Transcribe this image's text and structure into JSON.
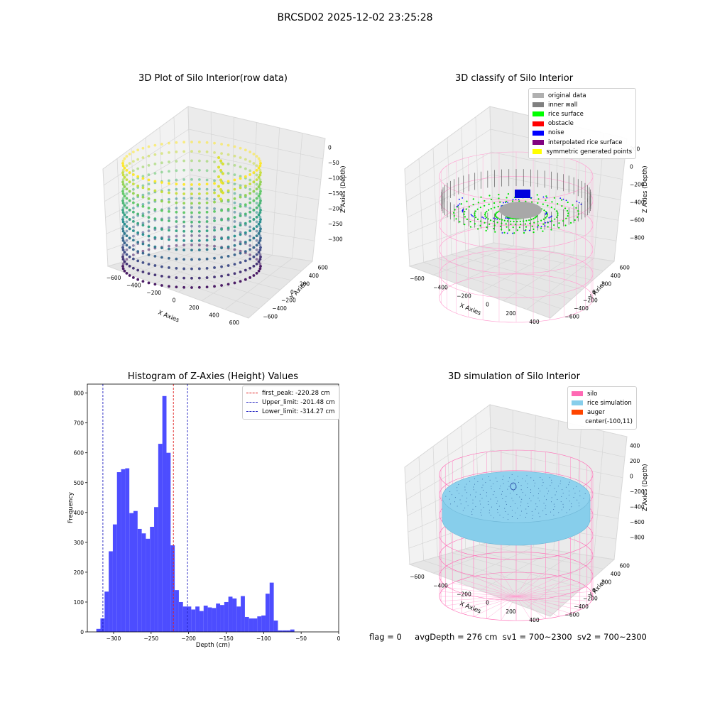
{
  "suptitle": "BRCSD02 2025-12-02 23:25:28",
  "footer": {
    "flag": "flag = 0",
    "avg_depth": "avgDepth = 276 cm",
    "sv1": "sv1 = 700~2300",
    "sv2": "sv2 = 700~2300"
  },
  "colors": {
    "hist_bar": "#4d4dff",
    "first_peak": "#e02020",
    "limits": "#2020c0",
    "silo": "#ff69b4",
    "rice_sim": "#87ceeb",
    "auger": "#ff4500"
  },
  "chart_data": [
    {
      "type": "scatter3d",
      "title": "3D Plot of Silo Interior(row data)",
      "xlabel": "X Axies",
      "ylabel": "Y Axies",
      "zlabel": "Z Axies (Depth)",
      "x_ticks": [
        "−600",
        "−400",
        "−200",
        "0",
        "200",
        "400",
        "600"
      ],
      "y_ticks": [
        "−600",
        "−400",
        "−200",
        "0",
        "200",
        "400",
        "600"
      ],
      "z_ticks": [
        "0",
        "−50",
        "−100",
        "−150",
        "−200",
        "−250",
        "−300"
      ],
      "colormap": "viridis",
      "zlim": [
        -330,
        0
      ]
    },
    {
      "type": "scatter3d",
      "title": "3D classify of Silo Interior",
      "xlabel": "X Axies",
      "ylabel": "Y Axies",
      "zlabel": "Z Axies (Depth)",
      "x_ticks": [
        "−600",
        "−400",
        "−200",
        "0",
        "200",
        "400"
      ],
      "y_ticks": [
        "−600",
        "−400",
        "−200",
        "0",
        "200",
        "400",
        "600"
      ],
      "z_ticks": [
        "200",
        "0",
        "−200",
        "−400",
        "−600",
        "−800"
      ],
      "legend": [
        {
          "label": "original data",
          "color": "#b0b0b0"
        },
        {
          "label": "inner wall",
          "color": "#808080"
        },
        {
          "label": "rice surface",
          "color": "#00ff00"
        },
        {
          "label": "obstacle",
          "color": "#ff0000"
        },
        {
          "label": "noise",
          "color": "#0000ff"
        },
        {
          "label": "interpolated rice surface",
          "color": "#800080"
        },
        {
          "label": "symmetric generated points",
          "color": "#ffff00"
        }
      ]
    },
    {
      "type": "bar",
      "title": "Histogram of Z-Axies (Height) Values",
      "xlabel": "Depth (cm)",
      "ylabel": "Frequency",
      "xlim": [
        -335,
        0
      ],
      "ylim": [
        0,
        830
      ],
      "x_ticks": [
        -300,
        -250,
        -200,
        -150,
        -100,
        -50,
        0
      ],
      "y_ticks": [
        0,
        100,
        200,
        300,
        400,
        500,
        600,
        700,
        800
      ],
      "bin_width": 5.5,
      "bin_start": -323,
      "values": [
        10,
        45,
        135,
        270,
        360,
        535,
        545,
        548,
        398,
        405,
        345,
        330,
        312,
        352,
        418,
        630,
        790,
        600,
        290,
        140,
        100,
        85,
        85,
        75,
        85,
        70,
        88,
        82,
        80,
        95,
        90,
        100,
        118,
        112,
        85,
        120,
        50,
        45,
        45,
        52,
        55,
        128,
        165,
        38,
        5,
        5,
        5,
        8
      ],
      "vlines": [
        {
          "label": "first_peak: -220.28 cm",
          "x": -220.28,
          "color": "#e02020"
        },
        {
          "label": "Upper_limit: -201.48 cm",
          "x": -201.48,
          "color": "#2020c0"
        },
        {
          "label": "Lower_limit: -314.27 cm",
          "x": -314.27,
          "color": "#2020c0"
        }
      ]
    },
    {
      "type": "surface3d",
      "title": "3D simulation of Silo Interior",
      "xlabel": "X Axies",
      "ylabel": "Y Axies",
      "zlabel": "Z Axies (Depth)",
      "x_ticks": [
        "−600",
        "−400",
        "−200",
        "0",
        "200",
        "400"
      ],
      "y_ticks": [
        "−600",
        "−400",
        "−200",
        "0",
        "200",
        "400",
        "600"
      ],
      "z_ticks": [
        "400",
        "200",
        "0",
        "−200",
        "−400",
        "−600",
        "−800"
      ],
      "legend": [
        {
          "label": "silo",
          "color": "#ff69b4"
        },
        {
          "label": "rice simulation",
          "color": "#87ceeb"
        },
        {
          "label": "auger",
          "color": "#ff4500"
        },
        {
          "label": "center(-100,11)",
          "color": ""
        }
      ]
    }
  ]
}
